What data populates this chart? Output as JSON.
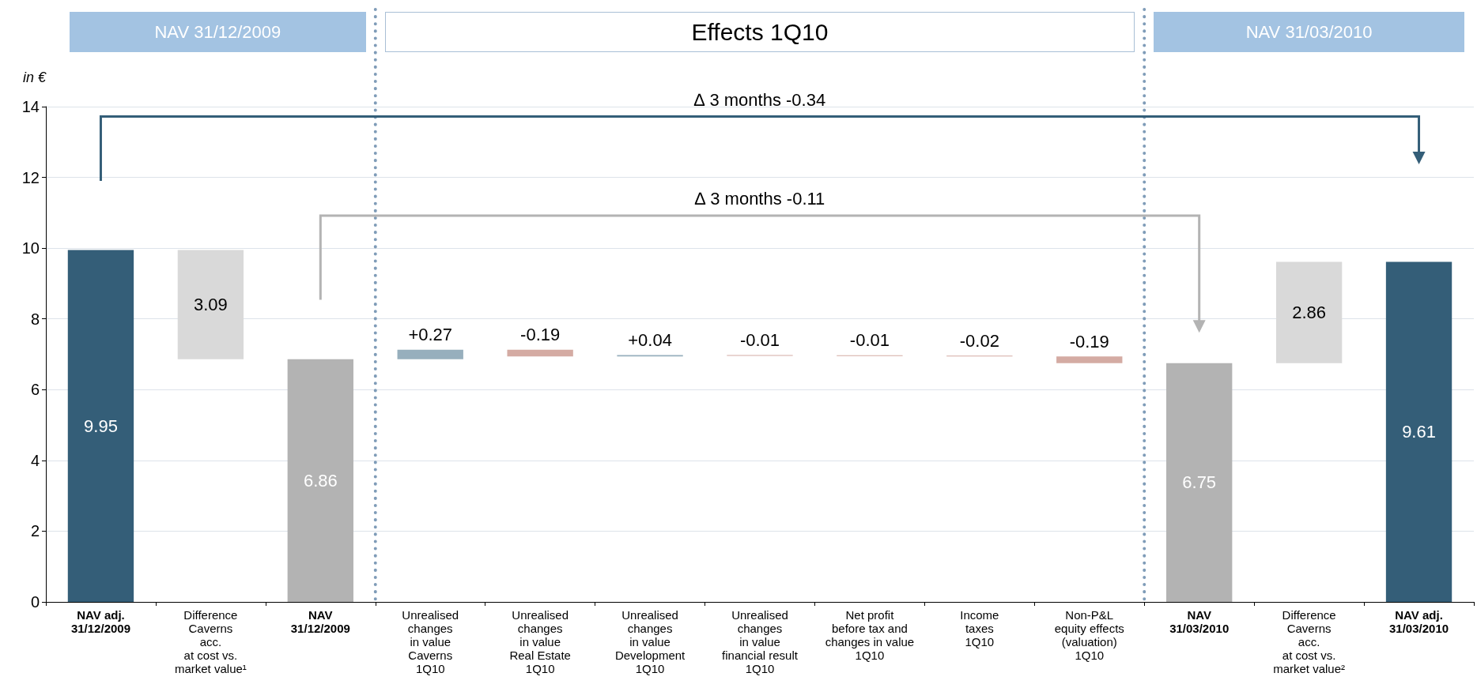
{
  "chart_data": {
    "type": "bar",
    "ylabel": "in €",
    "categories": [
      "NAV adj.\n31/12/2009",
      "Difference\nCaverns\nacc.\nat cost vs.\nmarket value¹",
      "NAV\n31/12/2009",
      "Unrealised\nchanges\nin value\nCaverns\n1Q10",
      "Unrealised\nchanges\nin value\nReal Estate\n1Q10",
      "Unrealised\nchanges\nin value\nDevelopment\n1Q10",
      "Unrealised\nchanges\nin value\nfinancial result\n1Q10",
      "Net profit\nbefore tax and\nchanges in value\n1Q10",
      "Income\ntaxes\n1Q10",
      "Non-P&L\nequity effects\n(valuation)\n1Q10",
      "NAV\n31/03/2010",
      "Difference\nCaverns\nacc.\nat cost vs.\nmarket value²",
      "NAV adj.\n31/03/2010"
    ],
    "values": [
      9.95,
      3.09,
      6.86,
      0.27,
      -0.19,
      0.04,
      -0.01,
      -0.01,
      -0.02,
      -0.19,
      6.75,
      2.86,
      9.61
    ],
    "base": [
      0,
      6.86,
      0,
      6.86,
      7.13,
      6.94,
      6.98,
      6.97,
      6.96,
      6.94,
      0,
      6.75,
      0
    ],
    "colors": [
      "#345e78",
      "#d9d9d9",
      "#b3b3b3",
      "#97afbd",
      "#d4aba3",
      "#97afbd",
      "#d4aba3",
      "#d4aba3",
      "#d4aba3",
      "#d4aba3",
      "#b3b3b3",
      "#d9d9d9",
      "#345e78"
    ],
    "value_labels": [
      "9.95",
      "3.09",
      "6.86",
      "+0.27",
      "-0.19",
      "+0.04",
      "-0.01",
      "-0.01",
      "-0.02",
      "-0.19",
      "6.75",
      "2.86",
      "9.61"
    ],
    "ylim": [
      0,
      14
    ],
    "yticks": [
      0,
      2,
      4,
      6,
      8,
      10,
      12,
      14
    ],
    "grid": "y",
    "annotations": [
      "NAV 31/12/2009",
      "Effects 1Q10",
      "NAV 31/03/2010",
      "∆ 3 months -0.34",
      "∆ 3 months -0.11"
    ]
  }
}
